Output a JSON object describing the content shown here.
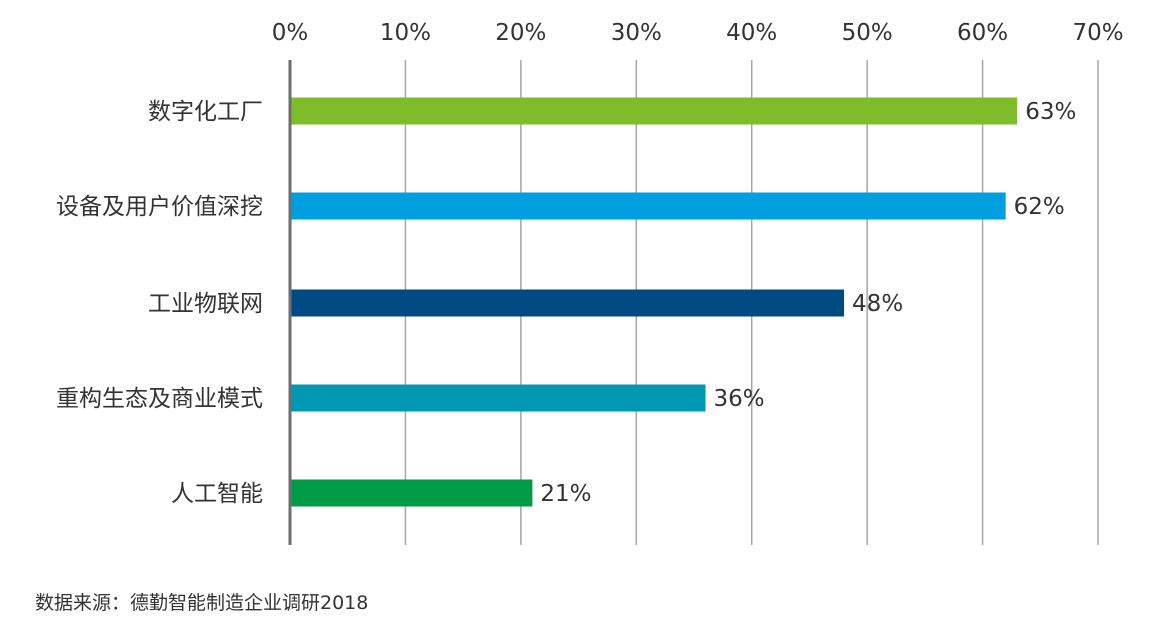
{
  "chart_data": {
    "type": "bar",
    "orientation": "horizontal",
    "title": "",
    "xlabel": "",
    "ylabel": "",
    "xlim": [
      0,
      70
    ],
    "x_ticks": [
      0,
      10,
      20,
      30,
      40,
      50,
      60,
      70
    ],
    "x_tick_labels": [
      "0%",
      "10%",
      "20%",
      "30%",
      "40%",
      "50%",
      "60%",
      "70%"
    ],
    "x_axis_position": "top",
    "grid": true,
    "categories": [
      "数字化工厂",
      "设备及用户价值深挖",
      "工业物联网",
      "重构生态及商业模式",
      "人工智能"
    ],
    "values": [
      63,
      62,
      48,
      36,
      21
    ],
    "value_labels": [
      "63%",
      "62%",
      "48%",
      "36%",
      "21%"
    ],
    "colors": [
      "#7fbc2a",
      "#009fe0",
      "#004a84",
      "#0098b3",
      "#009c45"
    ],
    "legend": null
  },
  "source_note": "数据来源：德勤智能制造企业调研2018"
}
